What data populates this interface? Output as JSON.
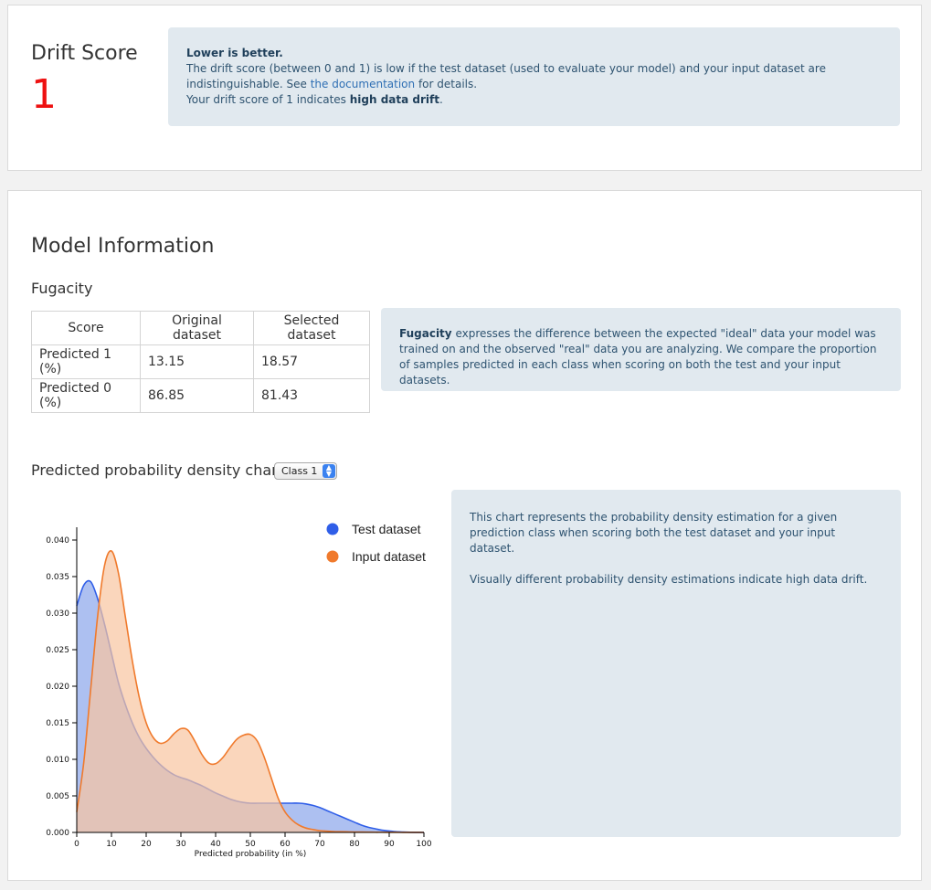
{
  "drift": {
    "title": "Drift Score",
    "value": "1",
    "info_heading": "Lower is better.",
    "info_line1": "The drift score (between 0 and 1) is low if the test dataset (used to evaluate your model) and your input dataset are indistinguishable. See ",
    "info_link": "the documentation",
    "info_line1_end": " for details.",
    "info_line2_start": "Your drift score of 1 indicates ",
    "info_line2_bold": "high data drift",
    "info_line2_end": "."
  },
  "model": {
    "title": "Model Information",
    "fugacity_title": "Fugacity",
    "table": {
      "headers": [
        "Score",
        "Original dataset",
        "Selected dataset"
      ],
      "rows": [
        [
          "Predicted 1 (%)",
          "13.15",
          "18.57"
        ],
        [
          "Predicted 0 (%)",
          "86.85",
          "81.43"
        ]
      ]
    },
    "fugacity_info_bold": "Fugacity",
    "fugacity_info_text": " expresses the difference between the expected \"ideal\" data your model was trained on and the observed \"real\" data you are analyzing. We compare the proportion of samples predicted in each class when scoring on both the test and your input datasets."
  },
  "density": {
    "title": "Predicted probability density chart",
    "select_value": "Class 1",
    "info_line1": "This chart represents the probability density estimation for a given prediction class when scoring both the test dataset and your input dataset.",
    "info_line2": "Visually different probability density estimations indicate high data drift."
  },
  "chart_data": {
    "type": "area",
    "xlabel": "Predicted probability (in %)",
    "ylabel": "",
    "xlim": [
      0,
      100
    ],
    "ylim": [
      0,
      0.04
    ],
    "x_ticks": [
      "0",
      "10",
      "20",
      "30",
      "40",
      "50",
      "60",
      "70",
      "80",
      "90",
      "100"
    ],
    "y_ticks": [
      "0.000",
      "0.005",
      "0.010",
      "0.015",
      "0.020",
      "0.025",
      "0.030",
      "0.035",
      "0.040"
    ],
    "legend_position": "top-right",
    "x": [
      0,
      2,
      4,
      6,
      8,
      10,
      12,
      14,
      16,
      18,
      20,
      22,
      24,
      26,
      28,
      30,
      32,
      34,
      36,
      38,
      40,
      42,
      44,
      46,
      48,
      50,
      52,
      54,
      56,
      58,
      60,
      62,
      64,
      66,
      68,
      70,
      72,
      74,
      76,
      78,
      80,
      82,
      84,
      86,
      88,
      90,
      92,
      94,
      96,
      98,
      100
    ],
    "series": [
      {
        "name": "Test dataset",
        "color": "#2f5ee8",
        "fill": "#a9bdf0",
        "values": [
          0.031,
          0.0338,
          0.0343,
          0.032,
          0.0285,
          0.0245,
          0.0205,
          0.0175,
          0.015,
          0.013,
          0.0115,
          0.0103,
          0.0093,
          0.0085,
          0.0079,
          0.0075,
          0.0072,
          0.0068,
          0.0064,
          0.0059,
          0.0054,
          0.005,
          0.0046,
          0.0043,
          0.0041,
          0.004,
          0.004,
          0.004,
          0.004,
          0.004,
          0.004,
          0.004,
          0.004,
          0.0039,
          0.0037,
          0.0034,
          0.003,
          0.0026,
          0.0022,
          0.0018,
          0.0014,
          0.001,
          0.0007,
          0.0005,
          0.0003,
          0.0002,
          0.0001,
          5e-05,
          2e-05,
          1e-05,
          0.0
        ]
      },
      {
        "name": "Input dataset",
        "color": "#f07a2c",
        "fill": "#f8c4a0",
        "values": [
          0.0028,
          0.0095,
          0.0195,
          0.0295,
          0.0365,
          0.0385,
          0.0355,
          0.0295,
          0.0235,
          0.0185,
          0.015,
          0.013,
          0.0122,
          0.0125,
          0.0135,
          0.0142,
          0.014,
          0.0125,
          0.0107,
          0.0095,
          0.0094,
          0.0102,
          0.0115,
          0.0127,
          0.0133,
          0.0134,
          0.0125,
          0.0103,
          0.0075,
          0.0047,
          0.0028,
          0.0017,
          0.001,
          0.0006,
          0.0004,
          0.00025,
          0.00018,
          0.00012,
          0.0001,
          8e-05,
          6e-05,
          5e-05,
          4e-05,
          3e-05,
          3e-05,
          2e-05,
          2e-05,
          1e-05,
          1e-05,
          1e-05,
          0.0
        ]
      }
    ]
  }
}
